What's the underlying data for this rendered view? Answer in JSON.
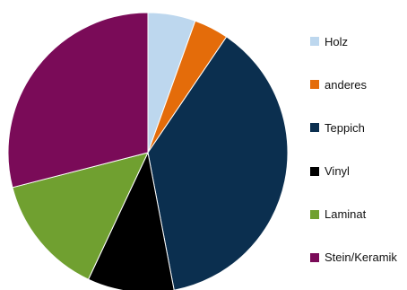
{
  "chart_data": {
    "type": "pie",
    "series": [
      {
        "label": "Holz",
        "value": 5.5,
        "color": "#BDD7EE"
      },
      {
        "label": "anderes",
        "value": 4.0,
        "color": "#E46C0A"
      },
      {
        "label": "Teppich",
        "value": 37.5,
        "color": "#0B2F4F"
      },
      {
        "label": "Vinyl",
        "value": 10.0,
        "color": "#000000"
      },
      {
        "label": "Laminat",
        "value": 14.0,
        "color": "#70A030"
      },
      {
        "label": "Stein/Keramik",
        "value": 29.0,
        "color": "#7A0B58"
      }
    ],
    "start_angle_deg": 0,
    "direction": "clockwise",
    "legend_position": "right"
  }
}
